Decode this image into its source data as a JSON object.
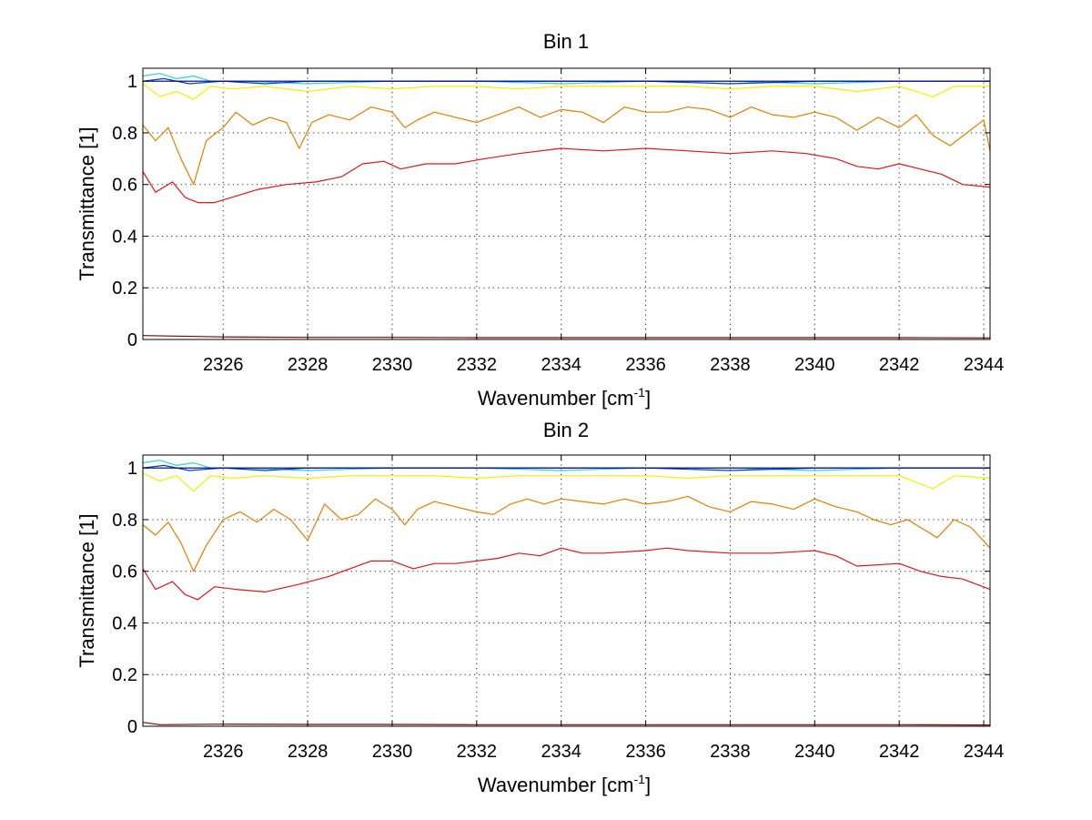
{
  "chart_data": [
    {
      "type": "line",
      "title": "Bin 1",
      "xlabel": "Wavenumber [cm",
      "xlabel_sup": "-1",
      "xlabel_end": "]",
      "ylabel": "Transmittance [1]",
      "xlim": [
        2324.1,
        2344.15
      ],
      "ylim": [
        0,
        1.05
      ],
      "grid": true,
      "xticks": [
        2326,
        2328,
        2330,
        2332,
        2334,
        2336,
        2338,
        2340,
        2342,
        2344
      ],
      "xtick_labels": [
        "2326",
        "2328",
        "2330",
        "2332",
        "2334",
        "2336",
        "2338",
        "2340",
        "2342",
        "2344"
      ],
      "yticks": [
        0,
        0.2,
        0.4,
        0.6,
        0.8,
        1
      ],
      "ytick_labels": [
        "0",
        "0.2",
        "0.4",
        "0.6",
        "0.8",
        "1"
      ],
      "series": [
        {
          "name": "dark-red",
          "color": "#7f0000",
          "x": [
            2324.1,
            2326,
            2328,
            2330,
            2332,
            2334,
            2336,
            2338,
            2340,
            2342,
            2344.15
          ],
          "y": [
            0.015,
            0.01,
            0.008,
            0.008,
            0.007,
            0.007,
            0.007,
            0.007,
            0.007,
            0.007,
            0.006
          ]
        },
        {
          "name": "red",
          "color": "#d7191c",
          "x": [
            2324.1,
            2324.4,
            2324.8,
            2325.1,
            2325.4,
            2325.8,
            2326.2,
            2326.8,
            2327.5,
            2328.2,
            2328.8,
            2329.3,
            2329.8,
            2330.2,
            2330.8,
            2331.5,
            2332.2,
            2333,
            2334,
            2335,
            2336,
            2337,
            2338,
            2339,
            2339.8,
            2340.5,
            2341,
            2341.5,
            2342,
            2342.5,
            2343,
            2343.5,
            2344.15
          ],
          "y": [
            0.65,
            0.57,
            0.61,
            0.55,
            0.53,
            0.53,
            0.55,
            0.58,
            0.6,
            0.61,
            0.63,
            0.68,
            0.69,
            0.66,
            0.68,
            0.68,
            0.7,
            0.72,
            0.74,
            0.73,
            0.74,
            0.73,
            0.72,
            0.73,
            0.72,
            0.7,
            0.67,
            0.66,
            0.68,
            0.66,
            0.64,
            0.6,
            0.59
          ]
        },
        {
          "name": "orange",
          "color": "#e08000",
          "x": [
            2324.1,
            2324.4,
            2324.7,
            2325,
            2325.3,
            2325.6,
            2326,
            2326.3,
            2326.7,
            2327.1,
            2327.5,
            2327.8,
            2328.1,
            2328.5,
            2329,
            2329.5,
            2330,
            2330.3,
            2330.6,
            2331,
            2331.5,
            2332,
            2332.5,
            2333,
            2333.5,
            2334,
            2334.5,
            2335,
            2335.5,
            2336,
            2336.5,
            2337,
            2337.5,
            2338,
            2338.5,
            2339,
            2339.5,
            2340,
            2340.5,
            2341,
            2341.5,
            2342,
            2342.4,
            2342.8,
            2343.2,
            2343.6,
            2344,
            2344.15
          ],
          "y": [
            0.83,
            0.77,
            0.82,
            0.7,
            0.6,
            0.77,
            0.82,
            0.88,
            0.83,
            0.86,
            0.84,
            0.74,
            0.84,
            0.87,
            0.85,
            0.9,
            0.88,
            0.82,
            0.85,
            0.88,
            0.86,
            0.84,
            0.87,
            0.9,
            0.86,
            0.89,
            0.88,
            0.84,
            0.9,
            0.88,
            0.88,
            0.9,
            0.89,
            0.86,
            0.9,
            0.87,
            0.86,
            0.88,
            0.86,
            0.81,
            0.86,
            0.82,
            0.87,
            0.79,
            0.75,
            0.8,
            0.85,
            0.73
          ]
        },
        {
          "name": "yellow",
          "color": "#f0f000",
          "x": [
            2324.1,
            2324.5,
            2324.9,
            2325.3,
            2325.7,
            2326.2,
            2327,
            2328,
            2329,
            2330,
            2331,
            2332,
            2333,
            2334,
            2335,
            2336,
            2337,
            2338,
            2339,
            2340,
            2341,
            2342,
            2342.8,
            2343.3,
            2344.15
          ],
          "y": [
            0.99,
            0.94,
            0.96,
            0.93,
            0.98,
            0.97,
            0.98,
            0.96,
            0.98,
            0.97,
            0.98,
            0.98,
            0.97,
            0.98,
            0.98,
            0.98,
            0.98,
            0.97,
            0.98,
            0.98,
            0.96,
            0.98,
            0.94,
            0.98,
            0.98
          ]
        },
        {
          "name": "cyan",
          "color": "#30d0e0",
          "x": [
            2324.1,
            2324.5,
            2324.9,
            2325.3,
            2325.7,
            2326.5,
            2328,
            2330,
            2332,
            2334,
            2336,
            2338,
            2340,
            2342,
            2344.15
          ],
          "y": [
            1.02,
            1.03,
            1.01,
            1.02,
            1.0,
            1.0,
            0.99,
            1.0,
            1.0,
            0.99,
            1.0,
            1.0,
            0.99,
            1.0,
            1.0
          ]
        },
        {
          "name": "blue",
          "color": "#0040c0",
          "x": [
            2324.1,
            2324.6,
            2325.2,
            2326,
            2327,
            2328,
            2330,
            2332,
            2334,
            2336,
            2338,
            2340,
            2342,
            2344.15
          ],
          "y": [
            1.0,
            1.01,
            0.99,
            1.0,
            0.99,
            1.0,
            1.0,
            1.0,
            1.0,
            1.0,
            0.99,
            1.0,
            1.0,
            1.0
          ]
        },
        {
          "name": "dark-blue",
          "color": "#00007f",
          "x": [
            2324.1,
            2326,
            2328,
            2330,
            2332,
            2334,
            2336,
            2338,
            2340,
            2342,
            2344.15
          ],
          "y": [
            1.0,
            1.0,
            1.0,
            1.0,
            1.0,
            1.0,
            1.0,
            1.0,
            1.0,
            1.0,
            1.0
          ]
        }
      ]
    },
    {
      "type": "line",
      "title": "Bin 2",
      "xlabel": "Wavenumber [cm",
      "xlabel_sup": "-1",
      "xlabel_end": "]",
      "ylabel": "Transmittance [1]",
      "xlim": [
        2324.1,
        2344.15
      ],
      "ylim": [
        0,
        1.05
      ],
      "grid": true,
      "xticks": [
        2326,
        2328,
        2330,
        2332,
        2334,
        2336,
        2338,
        2340,
        2342,
        2344
      ],
      "xtick_labels": [
        "2326",
        "2328",
        "2330",
        "2332",
        "2334",
        "2336",
        "2338",
        "2340",
        "2342",
        "2344"
      ],
      "yticks": [
        0,
        0.2,
        0.4,
        0.6,
        0.8,
        1
      ],
      "ytick_labels": [
        "0",
        "0.2",
        "0.4",
        "0.6",
        "0.8",
        "1"
      ],
      "series": [
        {
          "name": "dark-red",
          "color": "#7f0000",
          "x": [
            2324.1,
            2324.5,
            2326,
            2328,
            2330,
            2332,
            2334,
            2336,
            2338,
            2340,
            2342,
            2344.15
          ],
          "y": [
            0.015,
            0.006,
            0.008,
            0.007,
            0.007,
            0.006,
            0.006,
            0.006,
            0.006,
            0.006,
            0.006,
            0.005
          ]
        },
        {
          "name": "red",
          "color": "#d7191c",
          "x": [
            2324.1,
            2324.4,
            2324.8,
            2325.1,
            2325.4,
            2325.8,
            2326.3,
            2327,
            2327.8,
            2328.5,
            2329,
            2329.5,
            2330,
            2330.5,
            2331,
            2331.5,
            2332,
            2332.5,
            2333,
            2333.5,
            2334,
            2334.5,
            2335,
            2336,
            2336.5,
            2337,
            2338,
            2339,
            2340,
            2340.5,
            2341,
            2342,
            2342.5,
            2343,
            2343.5,
            2344.15
          ],
          "y": [
            0.61,
            0.53,
            0.56,
            0.51,
            0.49,
            0.54,
            0.53,
            0.52,
            0.55,
            0.58,
            0.61,
            0.64,
            0.64,
            0.61,
            0.63,
            0.63,
            0.64,
            0.65,
            0.67,
            0.66,
            0.69,
            0.67,
            0.67,
            0.68,
            0.69,
            0.68,
            0.67,
            0.67,
            0.68,
            0.66,
            0.62,
            0.63,
            0.6,
            0.58,
            0.57,
            0.53
          ]
        },
        {
          "name": "orange",
          "color": "#e08000",
          "x": [
            2324.1,
            2324.4,
            2324.7,
            2325,
            2325.3,
            2325.6,
            2326,
            2326.4,
            2326.8,
            2327.2,
            2327.6,
            2328,
            2328.4,
            2328.8,
            2329.2,
            2329.6,
            2330,
            2330.3,
            2330.6,
            2331,
            2331.5,
            2332,
            2332.4,
            2332.8,
            2333.2,
            2333.6,
            2334,
            2334.5,
            2335,
            2335.5,
            2336,
            2336.5,
            2337,
            2337.5,
            2338,
            2338.5,
            2339,
            2339.5,
            2340,
            2340.5,
            2341,
            2341.4,
            2341.8,
            2342.2,
            2342.6,
            2342.9,
            2343.3,
            2343.7,
            2344.15
          ],
          "y": [
            0.78,
            0.74,
            0.79,
            0.71,
            0.6,
            0.7,
            0.8,
            0.83,
            0.79,
            0.84,
            0.8,
            0.72,
            0.86,
            0.8,
            0.82,
            0.88,
            0.84,
            0.78,
            0.84,
            0.87,
            0.85,
            0.83,
            0.82,
            0.86,
            0.88,
            0.86,
            0.88,
            0.87,
            0.86,
            0.88,
            0.86,
            0.87,
            0.89,
            0.85,
            0.83,
            0.87,
            0.86,
            0.84,
            0.88,
            0.85,
            0.83,
            0.8,
            0.78,
            0.8,
            0.76,
            0.73,
            0.8,
            0.77,
            0.69
          ]
        },
        {
          "name": "yellow",
          "color": "#f0f000",
          "x": [
            2324.1,
            2324.5,
            2324.9,
            2325.3,
            2325.7,
            2326.2,
            2327,
            2328,
            2329,
            2330,
            2331,
            2332,
            2333,
            2334,
            2335,
            2336,
            2337,
            2338,
            2339,
            2340,
            2341,
            2342,
            2342.8,
            2343.3,
            2344.15
          ],
          "y": [
            0.98,
            0.95,
            0.97,
            0.91,
            0.97,
            0.96,
            0.97,
            0.96,
            0.97,
            0.97,
            0.97,
            0.96,
            0.97,
            0.97,
            0.97,
            0.97,
            0.96,
            0.97,
            0.97,
            0.97,
            0.97,
            0.97,
            0.92,
            0.97,
            0.96
          ]
        },
        {
          "name": "cyan",
          "color": "#30d0e0",
          "x": [
            2324.1,
            2324.5,
            2324.9,
            2325.3,
            2325.7,
            2326.5,
            2328,
            2330,
            2332,
            2334,
            2336,
            2338,
            2340,
            2342,
            2344.15
          ],
          "y": [
            1.02,
            1.03,
            1.01,
            1.02,
            1.0,
            1.0,
            0.99,
            1.0,
            1.0,
            0.99,
            1.0,
            1.0,
            0.99,
            1.0,
            1.0
          ]
        },
        {
          "name": "blue",
          "color": "#0040c0",
          "x": [
            2324.1,
            2324.6,
            2325.2,
            2326,
            2327,
            2328,
            2330,
            2332,
            2334,
            2336,
            2338,
            2340,
            2342,
            2344.15
          ],
          "y": [
            1.0,
            1.01,
            0.99,
            1.0,
            0.99,
            1.0,
            1.0,
            1.0,
            1.0,
            1.0,
            0.99,
            1.0,
            1.0,
            1.0
          ]
        },
        {
          "name": "dark-blue",
          "color": "#00007f",
          "x": [
            2324.1,
            2326,
            2328,
            2330,
            2332,
            2334,
            2336,
            2338,
            2340,
            2342,
            2344.15
          ],
          "y": [
            1.0,
            1.0,
            1.0,
            1.0,
            1.0,
            1.0,
            1.0,
            1.0,
            1.0,
            1.0,
            1.0
          ]
        }
      ]
    }
  ]
}
